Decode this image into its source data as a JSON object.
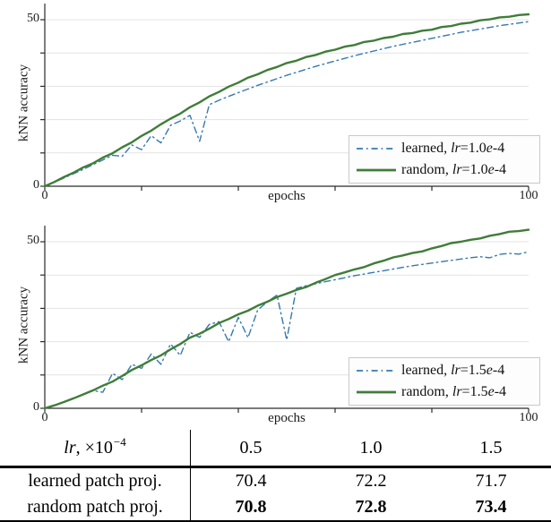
{
  "figure_type": "paper-figure",
  "table_header_col0": {
    "italic": "lr",
    "rest": ", ×10",
    "sup": "−4"
  },
  "chart_data": [
    {
      "type": "line",
      "id": "knn-accuracy-lr-1.0e-4",
      "title": "",
      "ylabel": "kNN accuracy",
      "xlabel": "epochs",
      "xlim": [
        0,
        100
      ],
      "ylim": [
        0,
        55
      ],
      "xticks": [
        0,
        20,
        40,
        60,
        80,
        100
      ],
      "xtick_labels": [
        "0",
        "100"
      ],
      "ytick_labels": [
        "0",
        "50"
      ],
      "grid_y": [
        10,
        20,
        30,
        40,
        50
      ],
      "grid": true,
      "legend_position": "lower right",
      "x": [
        0,
        2,
        4,
        6,
        8,
        10,
        12,
        14,
        16,
        18,
        20,
        22,
        24,
        26,
        28,
        30,
        32,
        34,
        36,
        38,
        40,
        42,
        44,
        46,
        48,
        50,
        52,
        54,
        56,
        58,
        60,
        62,
        64,
        66,
        68,
        70,
        72,
        74,
        76,
        78,
        80,
        82,
        84,
        86,
        88,
        90,
        92,
        94,
        96,
        98,
        100
      ],
      "series": [
        {
          "name": "learned, lr=1.0e-4",
          "color": "#3579ae",
          "line_style": "dashdot",
          "width": 1.4,
          "values": [
            0,
            1.2,
            2.5,
            3.8,
            5.1,
            6.5,
            7.9,
            9.3,
            9.0,
            12.4,
            11.0,
            15.2,
            13.0,
            18.3,
            19.6,
            21.3,
            13.5,
            24.5,
            25.8,
            27.0,
            28.1,
            29.2,
            30.3,
            31.3,
            32.3,
            33.3,
            34.2,
            35.1,
            36.0,
            36.8,
            37.6,
            38.4,
            39.2,
            39.9,
            40.6,
            41.3,
            42.0,
            42.6,
            43.2,
            43.8,
            44.4,
            45.0,
            45.6,
            46.2,
            46.7,
            47.2,
            47.7,
            48.2,
            48.6,
            49.0,
            49.4
          ]
        },
        {
          "name": "random, lr=1.0e-4",
          "color": "#3f7d39",
          "line_style": "solid",
          "width": 2.4,
          "values": [
            0,
            1.3,
            2.8,
            4.1,
            5.7,
            6.9,
            8.6,
            9.9,
            11.7,
            13.2,
            15.1,
            16.7,
            18.6,
            20.3,
            21.8,
            23.7,
            25.2,
            27.0,
            28.3,
            29.9,
            31.1,
            32.6,
            33.6,
            34.9,
            35.8,
            37.0,
            37.7,
            38.8,
            39.4,
            40.4,
            41.0,
            41.9,
            42.4,
            43.3,
            43.7,
            44.5,
            44.9,
            45.7,
            46.0,
            46.7,
            47.0,
            47.8,
            48.1,
            48.8,
            49.1,
            49.8,
            50.1,
            50.7,
            50.9,
            51.4,
            51.6
          ]
        }
      ]
    },
    {
      "type": "line",
      "id": "knn-accuracy-lr-1.5e-4",
      "title": "",
      "ylabel": "kNN accuracy",
      "xlabel": "epochs",
      "xlim": [
        0,
        100
      ],
      "ylim": [
        0,
        55
      ],
      "xticks": [
        0,
        20,
        40,
        60,
        80,
        100
      ],
      "xtick_labels": [
        "0",
        "100"
      ],
      "ytick_labels": [
        "0",
        "50"
      ],
      "grid_y": [
        10,
        20,
        30,
        40,
        50
      ],
      "grid": true,
      "legend_position": "lower right",
      "x": [
        0,
        2,
        4,
        6,
        8,
        10,
        12,
        14,
        16,
        18,
        20,
        22,
        24,
        26,
        28,
        30,
        32,
        34,
        36,
        38,
        40,
        42,
        44,
        46,
        48,
        50,
        52,
        54,
        56,
        58,
        60,
        62,
        64,
        66,
        68,
        70,
        72,
        74,
        76,
        78,
        80,
        82,
        84,
        86,
        88,
        90,
        92,
        94,
        96,
        98,
        100
      ],
      "series": [
        {
          "name": "learned, lr=1.5e-4",
          "color": "#3579ae",
          "line_style": "dashdot",
          "width": 1.4,
          "values": [
            0,
            0.9,
            1.9,
            3.0,
            4.2,
            5.3,
            4.8,
            10.5,
            8.6,
            13.2,
            12.0,
            16.3,
            13.2,
            19.3,
            15.9,
            22.8,
            21.3,
            25.2,
            26.0,
            20.0,
            27.3,
            21.2,
            29.5,
            32.0,
            34.0,
            20.5,
            36.0,
            36.8,
            37.4,
            38.0,
            38.6,
            39.2,
            39.8,
            40.3,
            40.8,
            41.3,
            41.8,
            42.3,
            42.8,
            43.2,
            43.6,
            44.0,
            44.4,
            44.8,
            45.2,
            45.5,
            45.2,
            46.2,
            46.5,
            46.3,
            47.0
          ]
        },
        {
          "name": "random, lr=1.5e-4",
          "color": "#3f7d39",
          "line_style": "solid",
          "width": 2.4,
          "values": [
            0,
            0.9,
            1.9,
            3.0,
            4.2,
            5.4,
            6.8,
            8.0,
            9.7,
            11.5,
            12.9,
            14.5,
            15.9,
            17.7,
            19.3,
            21.2,
            22.4,
            23.9,
            25.6,
            26.8,
            28.2,
            29.3,
            30.8,
            32.0,
            33.4,
            34.4,
            35.5,
            36.4,
            37.7,
            38.8,
            40.0,
            40.8,
            41.7,
            42.4,
            43.5,
            44.3,
            45.3,
            45.9,
            46.6,
            47.1,
            48.0,
            48.7,
            49.6,
            50.0,
            50.6,
            51.0,
            51.8,
            52.3,
            53.0,
            53.2,
            53.6
          ]
        }
      ]
    },
    {
      "type": "table",
      "columns": [
        "lr, ×10⁻⁴",
        "0.5",
        "1.0",
        "1.5"
      ],
      "rows": [
        [
          "learned patch proj.",
          "70.4",
          "72.2",
          "71.7"
        ],
        [
          "random patch proj.",
          "70.8",
          "72.8",
          "73.4"
        ]
      ],
      "bold_rows": [
        1
      ]
    }
  ]
}
